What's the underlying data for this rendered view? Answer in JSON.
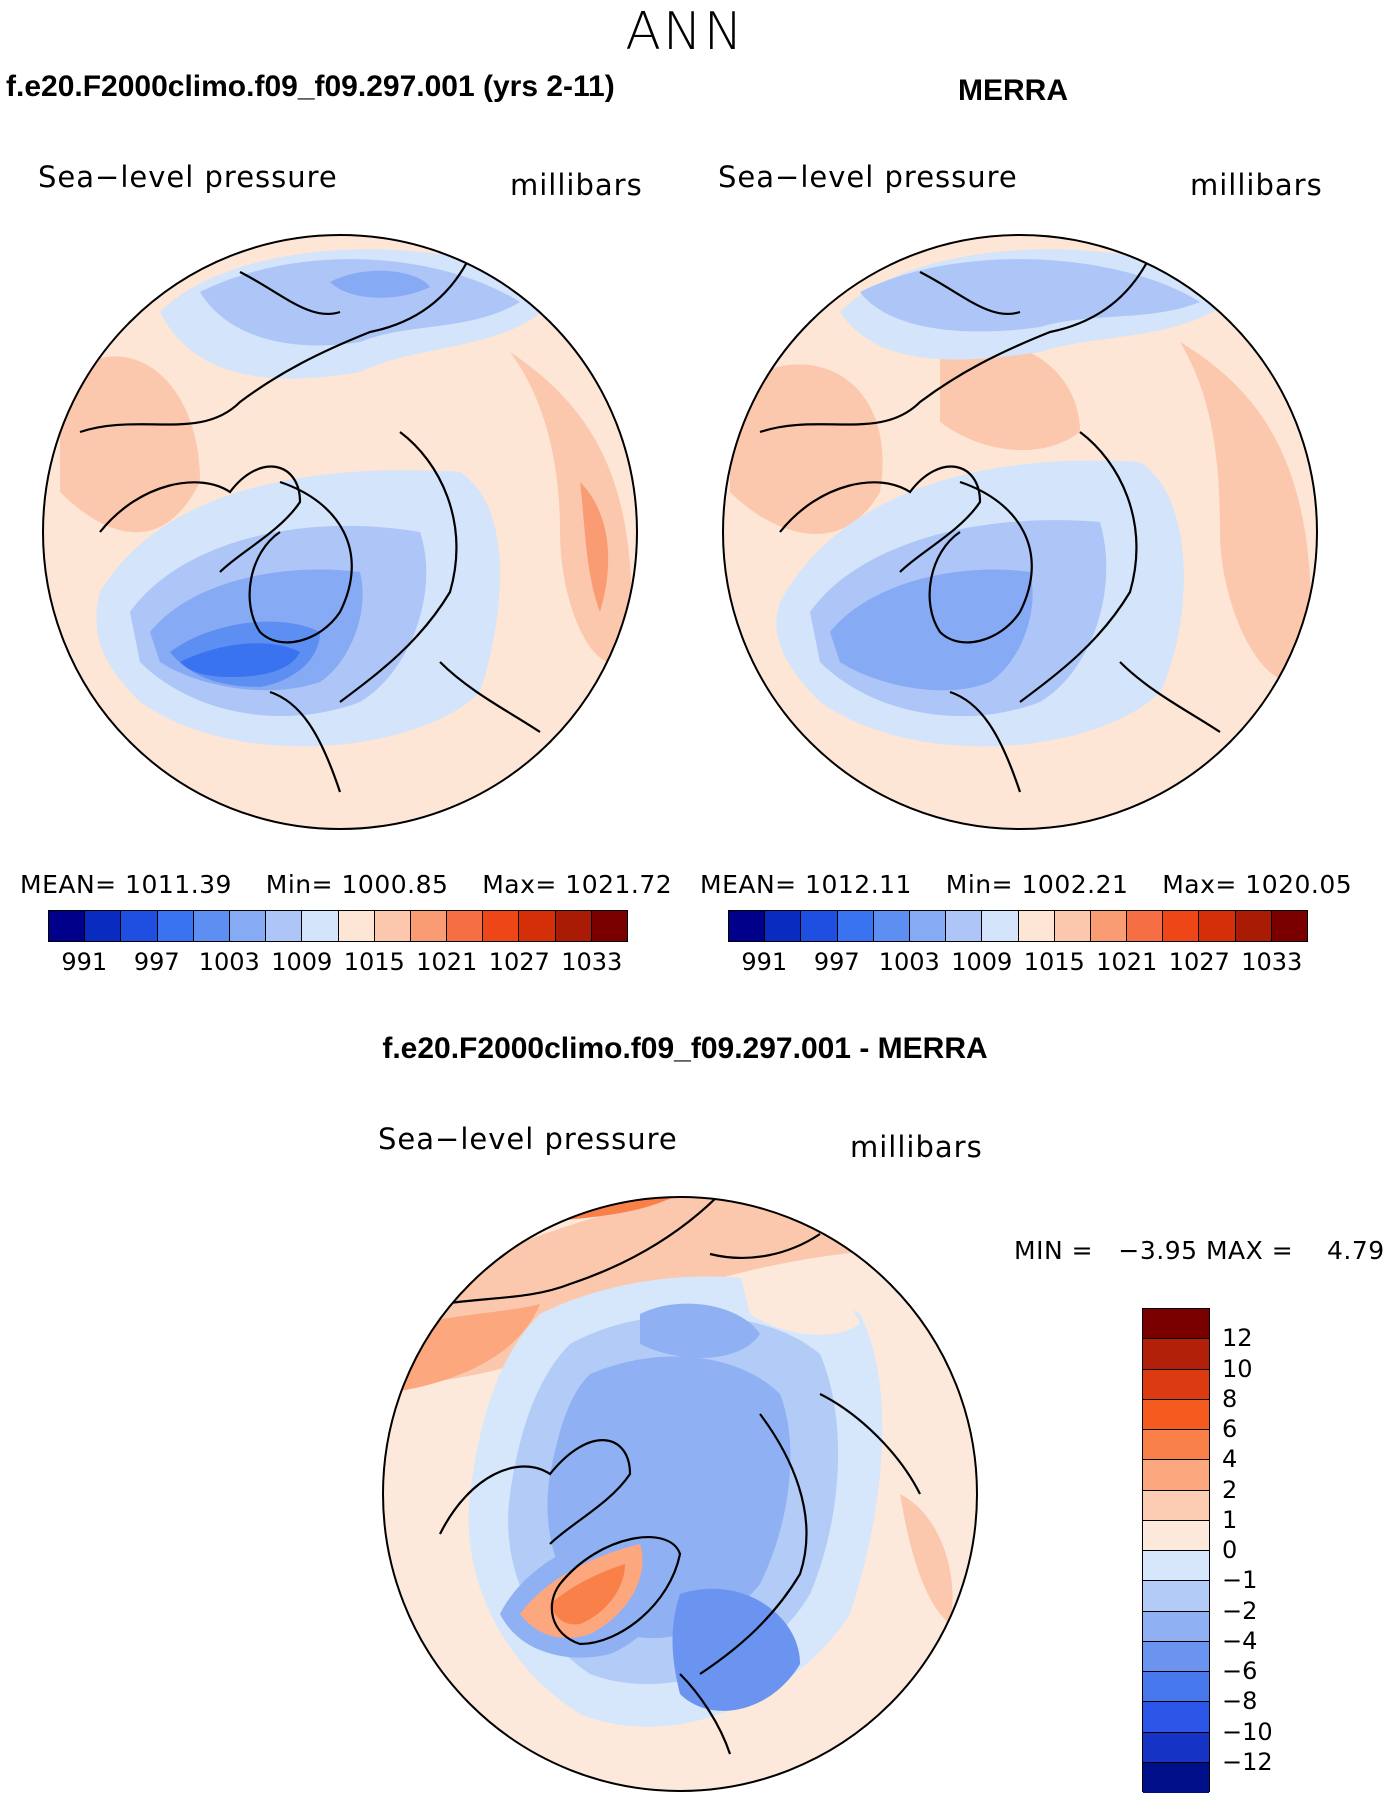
{
  "title": "ANN",
  "panels": [
    {
      "id": "model",
      "title": "f.e20.F2000climo.f09_f09.297.001 (yrs 2-11)",
      "variable": "Sea−level pressure",
      "units": "millibars",
      "stats": {
        "mean_label": "MEAN=",
        "mean": "1011.39",
        "min_label": "Min=",
        "min": "1000.85",
        "max_label": "Max=",
        "max": "1021.72"
      }
    },
    {
      "id": "obs",
      "title": "MERRA",
      "variable": "Sea−level pressure",
      "units": "millibars",
      "stats": {
        "mean_label": "MEAN=",
        "mean": "1012.11",
        "min_label": "Min=",
        "min": "1002.21",
        "max_label": "Max=",
        "max": "1020.05"
      }
    },
    {
      "id": "diff",
      "title": "f.e20.F2000climo.f09_f09.297.001 - MERRA",
      "variable": "Sea−level pressure",
      "units": "millibars",
      "stats": {
        "min_label": "MIN =",
        "min": "−3.95",
        "max_label": "MAX =",
        "max": "4.79"
      }
    }
  ],
  "colorbar_abs": {
    "colors": [
      "#00008b",
      "#0a2bc0",
      "#1f4fe0",
      "#3a73f0",
      "#5d8ff2",
      "#86aaf4",
      "#adc5f7",
      "#d4e4fa",
      "#fde6d6",
      "#fcc8ad",
      "#f99c74",
      "#f56e44",
      "#ee4617",
      "#d42f08",
      "#a91b05",
      "#7a0000"
    ],
    "labels": [
      "991",
      "997",
      "1003",
      "1009",
      "1015",
      "1021",
      "1027",
      "1033"
    ]
  },
  "colorbar_diff": {
    "colors": [
      "#7a0000",
      "#b22009",
      "#dc3a10",
      "#f55a1f",
      "#f98049",
      "#fca77e",
      "#fdcdb3",
      "#fde9dc",
      "#d6e7fb",
      "#b3ccf7",
      "#8fb0f2",
      "#6a94ef",
      "#4878ee",
      "#2c56e7",
      "#1534c5",
      "#00108b"
    ],
    "labels": [
      "12",
      "10",
      "8",
      "6",
      "4",
      "2",
      "1",
      "0",
      "−1",
      "−2",
      "−4",
      "−6",
      "−8",
      "−10",
      "−12"
    ]
  }
}
